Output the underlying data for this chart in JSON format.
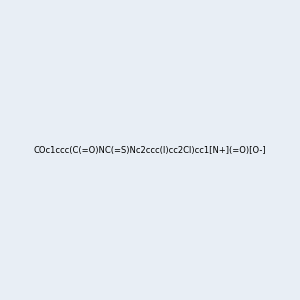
{
  "smiles": "COc1ccc(C(=O)NC(=S)Nc2ccc(I)cc2Cl)cc1[N+](=O)[O-]",
  "image_size": 300,
  "background_color": "#e8eef5",
  "title": ""
}
